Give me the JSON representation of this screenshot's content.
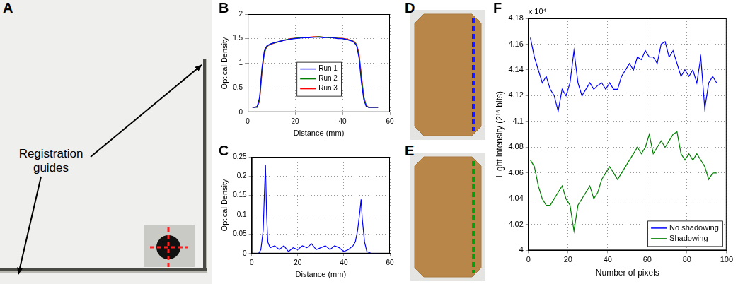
{
  "chart_data": [
    {
      "panel": "B",
      "type": "line",
      "x_label": "Distance (mm)",
      "y_label": "Optical Density",
      "x": [
        2,
        3,
        4,
        5,
        6,
        7,
        8,
        9,
        10,
        12,
        14,
        16,
        18,
        20,
        22,
        24,
        26,
        28,
        30,
        32,
        34,
        36,
        38,
        40,
        42,
        44,
        45,
        46,
        47,
        48,
        49,
        50,
        51,
        52,
        53,
        55
      ],
      "series": [
        {
          "name": "Run 1",
          "color": "#0000ff",
          "values": [
            0.1,
            0.1,
            0.12,
            0.3,
            0.9,
            1.25,
            1.35,
            1.38,
            1.4,
            1.43,
            1.45,
            1.47,
            1.49,
            1.5,
            1.51,
            1.52,
            1.52,
            1.53,
            1.53,
            1.52,
            1.53,
            1.52,
            1.5,
            1.5,
            1.48,
            1.45,
            1.42,
            1.35,
            1.1,
            0.6,
            0.25,
            0.12,
            0.1,
            0.1,
            0.1,
            0.1
          ]
        },
        {
          "name": "Run 2",
          "color": "#008000",
          "values": [
            0.1,
            0.1,
            0.1,
            0.25,
            0.85,
            1.22,
            1.34,
            1.37,
            1.4,
            1.42,
            1.45,
            1.48,
            1.49,
            1.51,
            1.52,
            1.52,
            1.53,
            1.53,
            1.54,
            1.53,
            1.52,
            1.52,
            1.51,
            1.5,
            1.48,
            1.46,
            1.43,
            1.37,
            1.15,
            0.7,
            0.3,
            0.13,
            0.1,
            0.1,
            0.1,
            0.1
          ]
        },
        {
          "name": "Run 3",
          "color": "#ff0000",
          "values": [
            0.1,
            0.1,
            0.11,
            0.22,
            0.8,
            1.2,
            1.33,
            1.37,
            1.39,
            1.42,
            1.45,
            1.47,
            1.5,
            1.51,
            1.52,
            1.53,
            1.53,
            1.54,
            1.54,
            1.53,
            1.53,
            1.52,
            1.51,
            1.51,
            1.49,
            1.46,
            1.44,
            1.38,
            1.2,
            0.75,
            0.32,
            0.14,
            0.1,
            0.1,
            0.1,
            0.1
          ]
        }
      ],
      "xlim": [
        0,
        60
      ],
      "xticks": [
        0,
        20,
        40,
        60
      ],
      "ylim": [
        0,
        2
      ],
      "yticks": [
        0,
        0.5,
        1,
        1.5,
        2
      ],
      "grid": true,
      "legend": "center"
    },
    {
      "panel": "C",
      "type": "line",
      "x_label": "Distance (mm)",
      "y_label": "Optical Density",
      "x": [
        2,
        3,
        4,
        5,
        5.5,
        6,
        6.5,
        7,
        8,
        10,
        12,
        14,
        16,
        18,
        20,
        22,
        24,
        26,
        28,
        30,
        32,
        34,
        36,
        38,
        40,
        42,
        44,
        45,
        46,
        47,
        47.5,
        48,
        49,
        50,
        52,
        55
      ],
      "values": [
        0,
        0,
        0.01,
        0.06,
        0.15,
        0.23,
        0.1,
        0.03,
        0.015,
        0.02,
        0.01,
        0.02,
        0.005,
        0.015,
        0.01,
        0.02,
        0.015,
        0.025,
        0.01,
        0.015,
        0.02,
        0.01,
        0.02,
        0.015,
        0.005,
        0.01,
        0.02,
        0.03,
        0.06,
        0.11,
        0.14,
        0.09,
        0.03,
        0.005,
        0,
        0
      ],
      "color": "#0000ff",
      "xlim": [
        0,
        60
      ],
      "xticks": [
        0,
        20,
        40,
        60
      ],
      "ylim": [
        0,
        0.25
      ],
      "yticks": [
        0,
        0.05,
        0.1,
        0.15,
        0.2,
        0.25
      ],
      "grid": true
    },
    {
      "panel": "F",
      "type": "line",
      "x_label": "Number of pixels",
      "y_label": "Light intensity (2¹⁶ bits)",
      "annotations": [
        "x 10⁴"
      ],
      "x": [
        1,
        3,
        5,
        7,
        9,
        11,
        13,
        15,
        17,
        19,
        21,
        23,
        25,
        27,
        29,
        31,
        33,
        35,
        37,
        39,
        41,
        43,
        45,
        47,
        49,
        51,
        53,
        55,
        57,
        59,
        61,
        63,
        65,
        67,
        69,
        71,
        73,
        75,
        77,
        79,
        81,
        83,
        85,
        87,
        89,
        91,
        93,
        95
      ],
      "series": [
        {
          "name": "No shadowing",
          "color": "#0000ff",
          "values": [
            4.165,
            4.15,
            4.14,
            4.13,
            4.135,
            4.125,
            4.12,
            4.108,
            4.125,
            4.12,
            4.13,
            4.155,
            4.13,
            4.12,
            4.125,
            4.13,
            4.125,
            4.128,
            4.13,
            4.125,
            4.13,
            4.125,
            4.125,
            4.135,
            4.14,
            4.145,
            4.14,
            4.15,
            4.148,
            4.155,
            4.15,
            4.15,
            4.145,
            4.16,
            4.162,
            4.15,
            4.155,
            4.145,
            4.135,
            4.14,
            4.135,
            4.14,
            4.13,
            4.15,
            4.11,
            4.13,
            4.135,
            4.13
          ]
        },
        {
          "name": "Shadowing",
          "color": "#008000",
          "values": [
            4.07,
            4.065,
            4.05,
            4.04,
            4.035,
            4.035,
            4.04,
            4.045,
            4.05,
            4.04,
            4.035,
            4.015,
            4.035,
            4.04,
            4.045,
            4.05,
            4.04,
            4.045,
            4.055,
            4.06,
            4.065,
            4.06,
            4.055,
            4.06,
            4.065,
            4.07,
            4.075,
            4.08,
            4.075,
            4.08,
            4.09,
            4.075,
            4.08,
            4.085,
            4.08,
            4.085,
            4.09,
            4.092,
            4.075,
            4.07,
            4.075,
            4.07,
            4.075,
            4.07,
            4.065,
            4.055,
            4.06,
            4.06
          ]
        }
      ],
      "xlim": [
        0,
        100
      ],
      "xticks": [
        0,
        20,
        40,
        60,
        80,
        100
      ],
      "ylim": [
        4,
        4.18
      ],
      "yticks": [
        4,
        4.02,
        4.04,
        4.06,
        4.08,
        4.1,
        4.12,
        4.14,
        4.16,
        4.18
      ],
      "grid": true,
      "legend": "lower right"
    }
  ],
  "images": [
    {
      "panel": "A",
      "annotation": "Registration guides"
    },
    {
      "panel": "D",
      "color": "#1a1aff"
    },
    {
      "panel": "E",
      "color": "#119911"
    }
  ]
}
